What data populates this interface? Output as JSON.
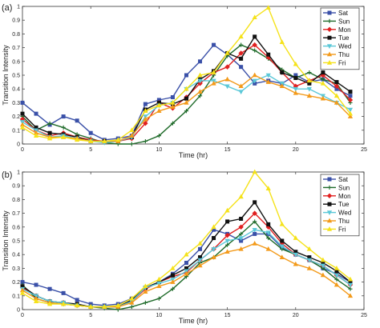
{
  "chart_data": [
    {
      "type": "line",
      "panel_label": "(a)",
      "xlabel": "Time (hr)",
      "ylabel": "Transition Intensity",
      "xlim": [
        0,
        25
      ],
      "ylim": [
        0,
        1
      ],
      "xticks": [
        "0",
        "5",
        "10",
        "15",
        "20",
        "25"
      ],
      "yticks": [
        "0",
        "0.1",
        "0.2",
        "0.3",
        "0.4",
        "0.5",
        "0.6",
        "0.7",
        "0.8",
        "0.9",
        "1"
      ],
      "grid": false,
      "legend_position": "top-right",
      "series": [
        {
          "name": "Sat",
          "color": "#3a50a8",
          "marker": "square",
          "x": [
            0,
            1,
            2,
            3,
            4,
            5,
            6,
            7,
            8,
            9,
            10,
            11,
            12,
            13,
            14,
            15,
            16,
            17,
            18,
            19,
            20,
            21,
            22,
            23,
            24
          ],
          "y": [
            0.3,
            0.22,
            0.14,
            0.2,
            0.17,
            0.08,
            0.03,
            0.04,
            0.06,
            0.29,
            0.32,
            0.34,
            0.5,
            0.6,
            0.72,
            0.65,
            0.56,
            0.44,
            0.46,
            0.44,
            0.5,
            0.45,
            0.47,
            0.4,
            0.35
          ]
        },
        {
          "name": "Sun",
          "color": "#1f6b2a",
          "marker": "plus",
          "x": [
            0,
            1,
            2,
            3,
            4,
            5,
            6,
            7,
            8,
            9,
            10,
            11,
            12,
            13,
            14,
            15,
            16,
            17,
            18,
            19,
            20,
            21,
            22,
            23,
            24
          ],
          "y": [
            0.2,
            0.1,
            0.15,
            0.12,
            0.07,
            0.04,
            0.01,
            0.0,
            0.0,
            0.02,
            0.06,
            0.15,
            0.24,
            0.35,
            0.5,
            0.64,
            0.72,
            0.68,
            0.62,
            0.54,
            0.48,
            0.52,
            0.47,
            0.44,
            0.3
          ]
        },
        {
          "name": "Mon",
          "color": "#e02020",
          "marker": "diamond",
          "x": [
            0,
            1,
            2,
            3,
            4,
            5,
            6,
            7,
            8,
            9,
            10,
            11,
            12,
            13,
            14,
            15,
            16,
            17,
            18,
            19,
            20,
            21,
            22,
            23,
            24
          ],
          "y": [
            0.18,
            0.1,
            0.06,
            0.08,
            0.05,
            0.03,
            0.02,
            0.02,
            0.04,
            0.15,
            0.3,
            0.26,
            0.34,
            0.44,
            0.52,
            0.56,
            0.66,
            0.72,
            0.63,
            0.52,
            0.42,
            0.46,
            0.5,
            0.42,
            0.32
          ]
        },
        {
          "name": "Tue",
          "color": "#111111",
          "marker": "square",
          "x": [
            0,
            1,
            2,
            3,
            4,
            5,
            6,
            7,
            8,
            9,
            10,
            11,
            12,
            13,
            14,
            15,
            16,
            17,
            18,
            19,
            20,
            21,
            22,
            23,
            24
          ],
          "y": [
            0.22,
            0.12,
            0.08,
            0.07,
            0.05,
            0.02,
            0.02,
            0.02,
            0.05,
            0.25,
            0.3,
            0.29,
            0.33,
            0.47,
            0.53,
            0.66,
            0.62,
            0.78,
            0.65,
            0.52,
            0.48,
            0.44,
            0.52,
            0.45,
            0.38
          ]
        },
        {
          "name": "Wed",
          "color": "#5bc8d8",
          "marker": "triangle-down",
          "x": [
            0,
            1,
            2,
            3,
            4,
            5,
            6,
            7,
            8,
            9,
            10,
            11,
            12,
            13,
            14,
            15,
            16,
            17,
            18,
            19,
            20,
            21,
            22,
            23,
            24
          ],
          "y": [
            0.16,
            0.1,
            0.05,
            0.06,
            0.04,
            0.02,
            0.01,
            0.02,
            0.05,
            0.2,
            0.28,
            0.3,
            0.4,
            0.46,
            0.46,
            0.42,
            0.38,
            0.46,
            0.5,
            0.44,
            0.4,
            0.4,
            0.35,
            0.3,
            0.25
          ]
        },
        {
          "name": "Thu",
          "color": "#f39a1a",
          "marker": "triangle-up",
          "x": [
            0,
            1,
            2,
            3,
            4,
            5,
            6,
            7,
            8,
            9,
            10,
            11,
            12,
            13,
            14,
            15,
            16,
            17,
            18,
            19,
            20,
            21,
            22,
            23,
            24
          ],
          "y": [
            0.14,
            0.08,
            0.05,
            0.05,
            0.04,
            0.02,
            0.02,
            0.02,
            0.06,
            0.18,
            0.24,
            0.27,
            0.3,
            0.38,
            0.44,
            0.47,
            0.42,
            0.5,
            0.45,
            0.42,
            0.37,
            0.35,
            0.33,
            0.3,
            0.2
          ]
        },
        {
          "name": "Fri",
          "color": "#f5e21a",
          "marker": "triangle-up",
          "x": [
            0,
            1,
            2,
            3,
            4,
            5,
            6,
            7,
            8,
            9,
            10,
            11,
            12,
            13,
            14,
            15,
            16,
            17,
            18,
            19,
            20,
            21,
            22,
            23,
            24
          ],
          "y": [
            0.12,
            0.06,
            0.04,
            0.05,
            0.03,
            0.02,
            0.02,
            0.03,
            0.1,
            0.24,
            0.28,
            0.3,
            0.4,
            0.5,
            0.52,
            0.66,
            0.78,
            0.92,
            0.99,
            0.74,
            0.58,
            0.46,
            0.44,
            0.35,
            0.22
          ]
        }
      ]
    },
    {
      "type": "line",
      "panel_label": "(b)",
      "xlabel": "Time (hr)",
      "ylabel": "Transition Intensity",
      "xlim": [
        0,
        25
      ],
      "ylim": [
        0,
        1
      ],
      "xticks": [
        "0",
        "5",
        "10",
        "15",
        "20",
        "25"
      ],
      "yticks": [
        "0",
        "0.1",
        "0.2",
        "0.3",
        "0.4",
        "0.5",
        "0.6",
        "0.7",
        "0.8",
        "0.9",
        "1"
      ],
      "grid": false,
      "legend_position": "top-right",
      "series": [
        {
          "name": "Sat",
          "color": "#3a50a8",
          "marker": "square",
          "x": [
            0,
            1,
            2,
            3,
            4,
            5,
            6,
            7,
            8,
            9,
            10,
            11,
            12,
            13,
            14,
            15,
            16,
            17,
            18,
            19,
            20,
            21,
            22,
            23,
            24
          ],
          "y": [
            0.2,
            0.18,
            0.15,
            0.12,
            0.07,
            0.04,
            0.03,
            0.04,
            0.08,
            0.16,
            0.2,
            0.26,
            0.34,
            0.44,
            0.58,
            0.55,
            0.5,
            0.55,
            0.55,
            0.45,
            0.4,
            0.36,
            0.3,
            0.26,
            0.2
          ]
        },
        {
          "name": "Sun",
          "color": "#1f6b2a",
          "marker": "plus",
          "x": [
            0,
            1,
            2,
            3,
            4,
            5,
            6,
            7,
            8,
            9,
            10,
            11,
            12,
            13,
            14,
            15,
            16,
            17,
            18,
            19,
            20,
            21,
            22,
            23,
            24
          ],
          "y": [
            0.18,
            0.08,
            0.05,
            0.04,
            0.03,
            0.02,
            0.01,
            0.0,
            0.02,
            0.05,
            0.08,
            0.15,
            0.24,
            0.34,
            0.38,
            0.47,
            0.55,
            0.64,
            0.52,
            0.44,
            0.4,
            0.36,
            0.3,
            0.22,
            0.15
          ]
        },
        {
          "name": "Mon",
          "color": "#e02020",
          "marker": "diamond",
          "x": [
            0,
            1,
            2,
            3,
            4,
            5,
            6,
            7,
            8,
            9,
            10,
            11,
            12,
            13,
            14,
            15,
            16,
            17,
            18,
            19,
            20,
            21,
            22,
            23,
            24
          ],
          "y": [
            0.16,
            0.1,
            0.06,
            0.05,
            0.03,
            0.02,
            0.02,
            0.02,
            0.06,
            0.15,
            0.2,
            0.24,
            0.27,
            0.36,
            0.44,
            0.54,
            0.6,
            0.7,
            0.6,
            0.48,
            0.4,
            0.36,
            0.32,
            0.25,
            0.18
          ]
        },
        {
          "name": "Tue",
          "color": "#111111",
          "marker": "square",
          "x": [
            0,
            1,
            2,
            3,
            4,
            5,
            6,
            7,
            8,
            9,
            10,
            11,
            12,
            13,
            14,
            15,
            16,
            17,
            18,
            19,
            20,
            21,
            22,
            23,
            24
          ],
          "y": [
            0.17,
            0.1,
            0.06,
            0.05,
            0.04,
            0.02,
            0.02,
            0.02,
            0.07,
            0.16,
            0.2,
            0.25,
            0.3,
            0.38,
            0.52,
            0.64,
            0.66,
            0.78,
            0.62,
            0.5,
            0.42,
            0.38,
            0.34,
            0.28,
            0.2
          ]
        },
        {
          "name": "Wed",
          "color": "#5bc8d8",
          "marker": "triangle-down",
          "x": [
            0,
            1,
            2,
            3,
            4,
            5,
            6,
            7,
            8,
            9,
            10,
            11,
            12,
            13,
            14,
            15,
            16,
            17,
            18,
            19,
            20,
            21,
            22,
            23,
            24
          ],
          "y": [
            0.15,
            0.1,
            0.06,
            0.05,
            0.03,
            0.02,
            0.02,
            0.02,
            0.06,
            0.16,
            0.19,
            0.22,
            0.28,
            0.36,
            0.44,
            0.5,
            0.52,
            0.58,
            0.56,
            0.46,
            0.4,
            0.36,
            0.32,
            0.25,
            0.18
          ]
        },
        {
          "name": "Thu",
          "color": "#f39a1a",
          "marker": "triangle-up",
          "x": [
            0,
            1,
            2,
            3,
            4,
            5,
            6,
            7,
            8,
            9,
            10,
            11,
            12,
            13,
            14,
            15,
            16,
            17,
            18,
            19,
            20,
            21,
            22,
            23,
            24
          ],
          "y": [
            0.14,
            0.08,
            0.05,
            0.04,
            0.03,
            0.02,
            0.02,
            0.02,
            0.05,
            0.13,
            0.17,
            0.2,
            0.26,
            0.32,
            0.38,
            0.42,
            0.44,
            0.48,
            0.44,
            0.38,
            0.33,
            0.3,
            0.25,
            0.18,
            0.1
          ]
        },
        {
          "name": "Fri",
          "color": "#f5e21a",
          "marker": "triangle-up",
          "x": [
            0,
            1,
            2,
            3,
            4,
            5,
            6,
            7,
            8,
            9,
            10,
            11,
            12,
            13,
            14,
            15,
            16,
            17,
            18,
            19,
            20,
            21,
            22,
            23,
            24
          ],
          "y": [
            0.12,
            0.06,
            0.04,
            0.04,
            0.03,
            0.02,
            0.02,
            0.03,
            0.08,
            0.17,
            0.22,
            0.3,
            0.4,
            0.48,
            0.6,
            0.72,
            0.82,
            1.0,
            0.88,
            0.62,
            0.52,
            0.44,
            0.36,
            0.3,
            0.22
          ]
        }
      ]
    }
  ]
}
